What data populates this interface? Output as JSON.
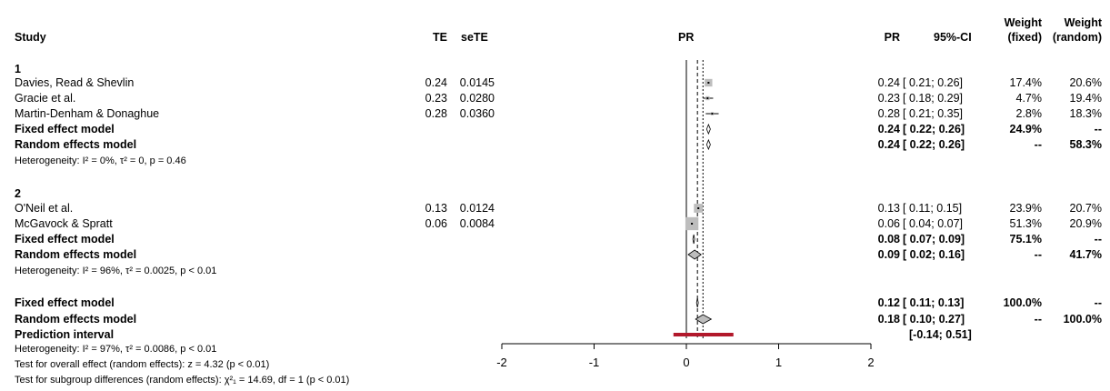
{
  "header": {
    "study": "Study",
    "te": "TE",
    "sete": "seTE",
    "pr_plot": "PR",
    "pr": "PR",
    "ci": "95%-CI",
    "w_fixed_1": "Weight",
    "w_fixed_2": "(fixed)",
    "w_random_1": "Weight",
    "w_random_2": "(random)"
  },
  "group1": {
    "label": "1",
    "studies": [
      {
        "name": "Davies, Read & Shevlin",
        "te": "0.24",
        "sete": "0.0145",
        "pr": "0.24",
        "ci": "[ 0.21; 0.26]",
        "wf": "17.4%",
        "wr": "20.6%"
      },
      {
        "name": "Gracie et al.",
        "te": "0.23",
        "sete": "0.0280",
        "pr": "0.23",
        "ci": "[ 0.18; 0.29]",
        "wf": "4.7%",
        "wr": "19.4%"
      },
      {
        "name": "Martin-Denham & Donaghue",
        "te": "0.28",
        "sete": "0.0360",
        "pr": "0.28",
        "ci": "[ 0.21; 0.35]",
        "wf": "2.8%",
        "wr": "18.3%"
      }
    ],
    "fixed": {
      "label": "Fixed effect model",
      "pr": "0.24",
      "ci": "[ 0.22; 0.26]",
      "wf": "24.9%",
      "wr": "--"
    },
    "random": {
      "label": "Random effects model",
      "pr": "0.24",
      "ci": "[ 0.22; 0.26]",
      "wf": "--",
      "wr": "58.3%"
    },
    "het": "Heterogeneity: I² = 0%, τ² = 0, p = 0.46"
  },
  "group2": {
    "label": "2",
    "studies": [
      {
        "name": "O'Neil et al.",
        "te": "0.13",
        "sete": "0.0124",
        "pr": "0.13",
        "ci": "[ 0.11; 0.15]",
        "wf": "23.9%",
        "wr": "20.7%"
      },
      {
        "name": "McGavock & Spratt",
        "te": "0.06",
        "sete": "0.0084",
        "pr": "0.06",
        "ci": "[ 0.04; 0.07]",
        "wf": "51.3%",
        "wr": "20.9%"
      }
    ],
    "fixed": {
      "label": "Fixed effect model",
      "pr": "0.08",
      "ci": "[ 0.07; 0.09]",
      "wf": "75.1%",
      "wr": "--"
    },
    "random": {
      "label": "Random effects model",
      "pr": "0.09",
      "ci": "[ 0.02; 0.16]",
      "wf": "--",
      "wr": "41.7%"
    },
    "het": "Heterogeneity: I² = 96%, τ² = 0.0025, p < 0.01"
  },
  "overall": {
    "fixed": {
      "label": "Fixed effect model",
      "pr": "0.12",
      "ci": "[ 0.11; 0.13]",
      "wf": "100.0%",
      "wr": "--"
    },
    "random": {
      "label": "Random effects model",
      "pr": "0.18",
      "ci": "[ 0.10; 0.27]",
      "wf": "--",
      "wr": "100.0%"
    },
    "pred": {
      "label": "Prediction interval",
      "ci": "[-0.14; 0.51]"
    },
    "het": "Heterogeneity: I² = 97%, τ² = 0.0086, p < 0.01",
    "test_overall": "Test for overall effect (random effects): z = 4.32 (p < 0.01)",
    "test_subgroup": "Test for subgroup differences (random effects): χ²₁ = 14.69, df = 1 (p < 0.01)"
  },
  "colors": {
    "square": "#bdbdbd",
    "diamond_random": "#bdbdbd",
    "prediction": "#b2182b"
  },
  "chart_data": {
    "type": "scatter",
    "xlim": [
      -2,
      2
    ],
    "ticks": [
      "-2",
      "-1",
      "0",
      "1",
      "2"
    ],
    "tick_values": [
      -2,
      -1,
      0,
      1,
      2
    ],
    "reference_lines": {
      "null": 0,
      "fixed_overall": 0.12,
      "random_overall": 0.18
    },
    "points": [
      {
        "study": "Davies, Read & Shevlin",
        "est": 0.24,
        "lo": 0.21,
        "hi": 0.26,
        "wf": 17.4
      },
      {
        "study": "Gracie et al.",
        "est": 0.23,
        "lo": 0.18,
        "hi": 0.29,
        "wf": 4.7
      },
      {
        "study": "Martin-Denham & Donaghue",
        "est": 0.28,
        "lo": 0.21,
        "hi": 0.35,
        "wf": 2.8
      },
      {
        "study": "O'Neil et al.",
        "est": 0.13,
        "lo": 0.11,
        "hi": 0.15,
        "wf": 23.9
      },
      {
        "study": "McGavock & Spratt",
        "est": 0.06,
        "lo": 0.04,
        "hi": 0.07,
        "wf": 51.3
      }
    ],
    "diamonds": [
      {
        "model": "group1-fixed",
        "est": 0.24,
        "lo": 0.22,
        "hi": 0.26,
        "kind": "fixed"
      },
      {
        "model": "group1-random",
        "est": 0.24,
        "lo": 0.22,
        "hi": 0.26,
        "kind": "fixed"
      },
      {
        "model": "group2-fixed",
        "est": 0.08,
        "lo": 0.07,
        "hi": 0.09,
        "kind": "fixed"
      },
      {
        "model": "group2-random",
        "est": 0.09,
        "lo": 0.02,
        "hi": 0.16,
        "kind": "random"
      },
      {
        "model": "overall-fixed",
        "est": 0.12,
        "lo": 0.11,
        "hi": 0.13,
        "kind": "fixed"
      },
      {
        "model": "overall-random",
        "est": 0.18,
        "lo": 0.1,
        "hi": 0.27,
        "kind": "random"
      }
    ],
    "prediction_interval": {
      "lo": -0.14,
      "hi": 0.51
    }
  }
}
